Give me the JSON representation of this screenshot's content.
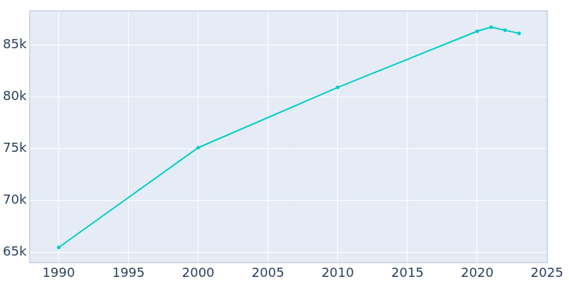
{
  "chart_data": {
    "type": "line",
    "x": [
      1990,
      2000,
      2010,
      2020,
      2021,
      2022,
      2023
    ],
    "values": [
      65500,
      75100,
      80900,
      86300,
      86700,
      86400,
      86100
    ],
    "color": "#00cccc",
    "marker": "circle",
    "line_style": "solid",
    "xlim": [
      1987.9,
      2025.05
    ],
    "xticks": [
      1990,
      1995,
      2000,
      2005,
      2010,
      2015,
      2020,
      2025
    ],
    "ylim": [
      64000,
      88300
    ],
    "yticks": [
      {
        "value": 65000,
        "label": "65k"
      },
      {
        "value": 70000,
        "label": "70k"
      },
      {
        "value": 75000,
        "label": "75k"
      },
      {
        "value": 80000,
        "label": "80k"
      },
      {
        "value": 85000,
        "label": "85k"
      }
    ],
    "grid": true
  }
}
